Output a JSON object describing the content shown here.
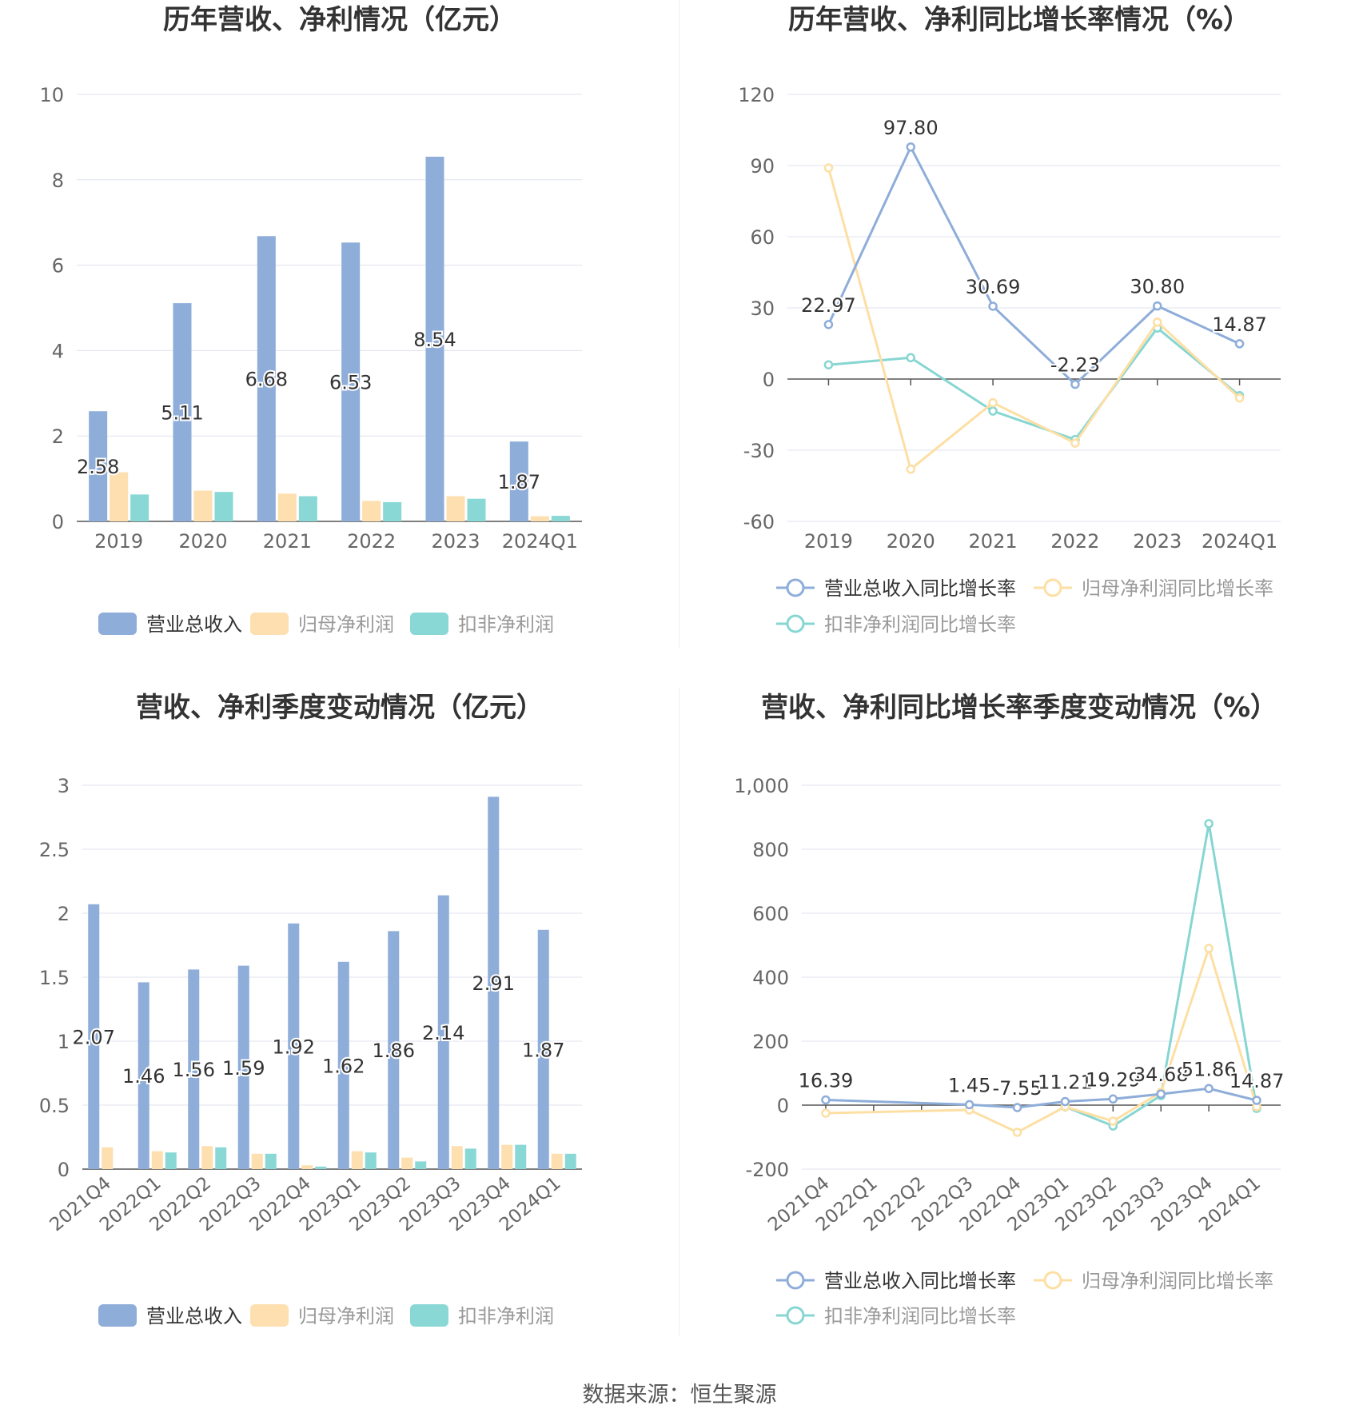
{
  "colors": {
    "revenue": "#8eadd9",
    "parent_profit": "#fddfb0",
    "deducted_profit": "#89d8d6",
    "revenue_line": "#8eadd9",
    "parent_line": "#fddfa4",
    "deducted_line": "#86d6d2",
    "grid": "#dfe3ef",
    "axis": "#555555",
    "label": "#333333",
    "tick": "#666666"
  },
  "source_text": "数据来源：恒生聚源",
  "chart_data": [
    {
      "id": "annual_amount",
      "type": "bar",
      "title": "历年营收、净利情况（亿元）",
      "categories": [
        "2019",
        "2020",
        "2021",
        "2022",
        "2023",
        "2024Q1"
      ],
      "ylim": [
        0,
        10
      ],
      "yticks": [
        "0",
        "2",
        "4",
        "6",
        "8",
        "10"
      ],
      "ytick_values": [
        0,
        2,
        4,
        6,
        8,
        10
      ],
      "series": [
        {
          "name": "营业总收入",
          "values": [
            2.58,
            5.11,
            6.68,
            6.53,
            8.54,
            1.87
          ],
          "labels": [
            "2.58",
            "5.11",
            "6.68",
            "6.53",
            "8.54",
            "1.87"
          ]
        },
        {
          "name": "归母净利润",
          "values": [
            1.15,
            0.72,
            0.65,
            0.48,
            0.59,
            0.12
          ]
        },
        {
          "name": "扣非净利润",
          "values": [
            0.63,
            0.69,
            0.59,
            0.45,
            0.53,
            0.13
          ]
        }
      ],
      "grid": true,
      "legend": "bottom"
    },
    {
      "id": "annual_growth",
      "type": "line",
      "title": "历年营收、净利同比增长率情况（%）",
      "categories": [
        "2019",
        "2020",
        "2021",
        "2022",
        "2023",
        "2024Q1"
      ],
      "ylim": [
        -60,
        120
      ],
      "yticks": [
        "-60",
        "-30",
        "0",
        "30",
        "60",
        "90",
        "120"
      ],
      "ytick_values": [
        -60,
        -30,
        0,
        30,
        60,
        90,
        120
      ],
      "series": [
        {
          "name": "营业总收入同比增长率",
          "values": [
            22.97,
            97.8,
            30.69,
            -2.23,
            30.8,
            14.87
          ],
          "labels": [
            "22.97",
            "97.80",
            "30.69",
            "-2.23",
            "30.80",
            "14.87"
          ]
        },
        {
          "name": "归母净利润同比增长率",
          "values": [
            89,
            -38,
            -10,
            -27,
            24,
            -8
          ]
        },
        {
          "name": "扣非净利润同比增长率",
          "values": [
            6,
            9,
            -13.5,
            -25.5,
            21.5,
            -7
          ]
        }
      ],
      "grid": true,
      "legend": "bottom"
    },
    {
      "id": "quarterly_amount",
      "type": "bar",
      "title": "营收、净利季度变动情况（亿元）",
      "categories": [
        "2021Q4",
        "2022Q1",
        "2022Q2",
        "2022Q3",
        "2022Q4",
        "2023Q1",
        "2023Q2",
        "2023Q3",
        "2023Q4",
        "2024Q1"
      ],
      "ylim": [
        0,
        3
      ],
      "yticks": [
        "0",
        "0.5",
        "1",
        "1.5",
        "2",
        "2.5",
        "3"
      ],
      "ytick_values": [
        0,
        0.5,
        1,
        1.5,
        2,
        2.5,
        3
      ],
      "series": [
        {
          "name": "营业总收入",
          "values": [
            2.07,
            1.46,
            1.56,
            1.59,
            1.92,
            1.62,
            1.86,
            2.14,
            2.91,
            1.87
          ],
          "labels": [
            "2.07",
            "1.46",
            "1.56",
            "1.59",
            "1.92",
            "1.62",
            "1.86",
            "2.14",
            "2.91",
            "1.87"
          ]
        },
        {
          "name": "归母净利润",
          "values": [
            0.17,
            0.14,
            0.18,
            0.12,
            0.03,
            0.14,
            0.09,
            0.18,
            0.19,
            0.12
          ]
        },
        {
          "name": "扣非净利润",
          "values": [
            0,
            0.13,
            0.17,
            0.12,
            0.02,
            0.13,
            0.06,
            0.16,
            0.19,
            0.12
          ]
        }
      ],
      "grid": true,
      "legend": "bottom"
    },
    {
      "id": "quarterly_growth",
      "type": "line",
      "title": "营收、净利同比增长率季度变动情况（%）",
      "categories": [
        "2021Q4",
        "2022Q1",
        "2022Q2",
        "2022Q3",
        "2022Q4",
        "2023Q1",
        "2023Q2",
        "2023Q3",
        "2023Q4",
        "2024Q1"
      ],
      "ylim": [
        -200,
        1000
      ],
      "yticks": [
        "-200",
        "0",
        "200",
        "400",
        "600",
        "800",
        "1,000"
      ],
      "ytick_values": [
        -200,
        0,
        200,
        400,
        600,
        800,
        1000
      ],
      "series": [
        {
          "name": "营业总收入同比增长率",
          "values": [
            16.39,
            null,
            null,
            1.45,
            -7.55,
            11.21,
            19.29,
            34.68,
            51.86,
            14.87
          ],
          "labels": [
            "16.39",
            null,
            null,
            "1.45",
            "-7.55",
            "11.21",
            "19.29",
            "34.68",
            "51.86",
            "14.87"
          ]
        },
        {
          "name": "归母净利润同比增长率",
          "values": [
            -25,
            null,
            null,
            -15,
            -85,
            -5,
            -50,
            40,
            490,
            -5
          ]
        },
        {
          "name": "扣非净利润同比增长率",
          "values": [
            null,
            null,
            null,
            null,
            null,
            -5,
            -65,
            30,
            880,
            -10
          ]
        }
      ],
      "grid": true,
      "legend": "bottom"
    }
  ]
}
